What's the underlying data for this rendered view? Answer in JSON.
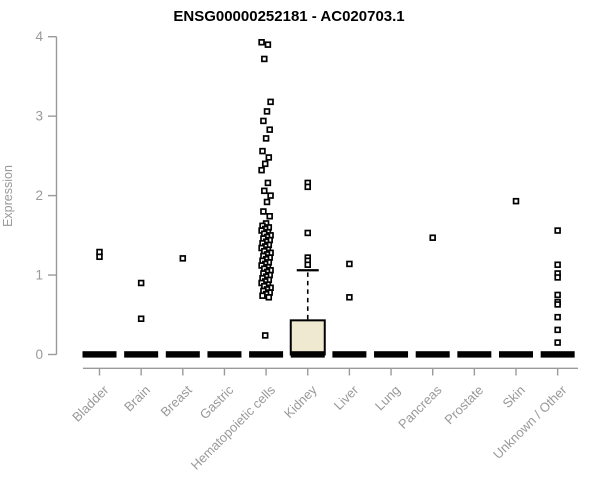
{
  "chart_data": {
    "type": "boxplot",
    "title": "ENSG00000252181 - AC020703.1",
    "ylabel": "Expression",
    "xlabel": "",
    "ylim": [
      0,
      4
    ],
    "yticks": [
      0,
      1,
      2,
      3,
      4
    ],
    "grid": false,
    "legend": "none",
    "categories": [
      "Bladder",
      "Brain",
      "Breast",
      "Gastric",
      "Hematopoietic cells",
      "Kidney",
      "Liver",
      "Lung",
      "Pancreas",
      "Prostate",
      "Skin",
      "Unknown / Other"
    ],
    "boxes": [
      {
        "category": "Bladder",
        "median": 0,
        "q1": 0,
        "q3": 0,
        "whisker_low": 0,
        "whisker_high": 0,
        "outliers": [
          1.29,
          1.23
        ]
      },
      {
        "category": "Brain",
        "median": 0,
        "q1": 0,
        "q3": 0,
        "whisker_low": 0,
        "whisker_high": 0,
        "outliers": [
          0.9,
          0.45
        ]
      },
      {
        "category": "Breast",
        "median": 0,
        "q1": 0,
        "q3": 0,
        "whisker_low": 0,
        "whisker_high": 0,
        "outliers": [
          1.21
        ]
      },
      {
        "category": "Gastric",
        "median": 0,
        "q1": 0,
        "q3": 0,
        "whisker_low": 0,
        "whisker_high": 0,
        "outliers": []
      },
      {
        "category": "Hematopoietic cells",
        "median": 0,
        "q1": 0,
        "q3": 0,
        "whisker_low": 0,
        "whisker_high": 0,
        "outliers": [
          3.93,
          3.9,
          3.72,
          3.18,
          3.06,
          2.94,
          2.83,
          2.72,
          2.56,
          2.48,
          2.4,
          2.32,
          2.16,
          2.06,
          2.0,
          1.92,
          1.8,
          1.74,
          1.65,
          1.62,
          1.6,
          1.58,
          1.56,
          1.54,
          1.52,
          1.5,
          1.48,
          1.46,
          1.44,
          1.42,
          1.4,
          1.38,
          1.36,
          1.34,
          1.32,
          1.3,
          1.28,
          1.26,
          1.24,
          1.22,
          1.2,
          1.18,
          1.16,
          1.14,
          1.12,
          1.1,
          1.08,
          1.06,
          1.04,
          1.02,
          1.0,
          0.98,
          0.96,
          0.94,
          0.92,
          0.9,
          0.88,
          0.86,
          0.84,
          0.82,
          0.8,
          0.78,
          0.76,
          0.74,
          0.72,
          0.24
        ]
      },
      {
        "category": "Kidney",
        "median": 0,
        "q1": 0,
        "q3": 0.43,
        "whisker_low": 0,
        "whisker_high": 1.06,
        "outliers": [
          2.16,
          2.11,
          1.53,
          1.22,
          1.18,
          1.13
        ]
      },
      {
        "category": "Liver",
        "median": 0,
        "q1": 0,
        "q3": 0,
        "whisker_low": 0,
        "whisker_high": 0,
        "outliers": [
          1.14,
          0.72
        ]
      },
      {
        "category": "Lung",
        "median": 0,
        "q1": 0,
        "q3": 0,
        "whisker_low": 0,
        "whisker_high": 0,
        "outliers": []
      },
      {
        "category": "Pancreas",
        "median": 0,
        "q1": 0,
        "q3": 0,
        "whisker_low": 0,
        "whisker_high": 0,
        "outliers": [
          1.47
        ]
      },
      {
        "category": "Prostate",
        "median": 0,
        "q1": 0,
        "q3": 0,
        "whisker_low": 0,
        "whisker_high": 0,
        "outliers": []
      },
      {
        "category": "Skin",
        "median": 0,
        "q1": 0,
        "q3": 0,
        "whisker_low": 0,
        "whisker_high": 0,
        "outliers": [
          1.93
        ]
      },
      {
        "category": "Unknown / Other",
        "median": 0,
        "q1": 0,
        "q3": 0,
        "whisker_low": 0,
        "whisker_high": 0,
        "outliers": [
          1.56,
          1.13,
          1.02,
          0.97,
          0.75,
          0.66,
          0.63,
          0.47,
          0.31,
          0.15
        ]
      }
    ],
    "colors": {
      "box_fill": "#efe9d1",
      "box_stroke": "#000000",
      "median_bar": "#000000",
      "point_stroke": "#000000",
      "point_fill": "#ffffff",
      "axis": "#9a9a9a",
      "tick_label": "#999999",
      "title": "#000000"
    }
  }
}
